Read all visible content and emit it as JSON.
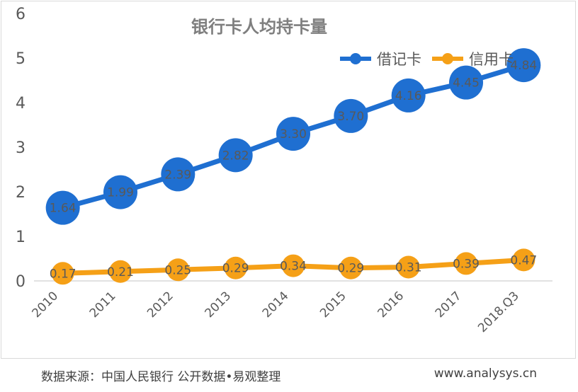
{
  "chart_data": {
    "type": "line",
    "title": "银行卡人均持卡量",
    "categories": [
      "2010",
      "2011",
      "2012",
      "2013",
      "2014",
      "2015",
      "2016",
      "2017",
      "2018.Q3"
    ],
    "series": [
      {
        "name": "借记卡",
        "color": "#1f6fd1",
        "values": [
          1.64,
          1.99,
          2.39,
          2.82,
          3.3,
          3.7,
          4.16,
          4.45,
          4.84
        ],
        "labels": [
          "1.64",
          "1.99",
          "2.39",
          "2.82",
          "3.30",
          "3.70",
          "4.16",
          "4.45",
          "4.84"
        ]
      },
      {
        "name": "信用卡",
        "color": "#f5a017",
        "values": [
          0.17,
          0.21,
          0.25,
          0.29,
          0.34,
          0.29,
          0.31,
          0.39,
          0.47
        ],
        "labels": [
          "0.17",
          "0.21",
          "0.25",
          "0.29",
          "0.34",
          "0.29",
          "0.31",
          "0.39",
          "0.47"
        ]
      }
    ],
    "ylim": [
      0,
      6
    ],
    "yticks": [
      "0",
      "1",
      "2",
      "3",
      "4",
      "5",
      "6"
    ],
    "grid": false,
    "legend": "top-right"
  },
  "footer": {
    "source": "数据来源：中国人民银行 公开数据•易观整理",
    "site": "www.analysys.cn"
  }
}
